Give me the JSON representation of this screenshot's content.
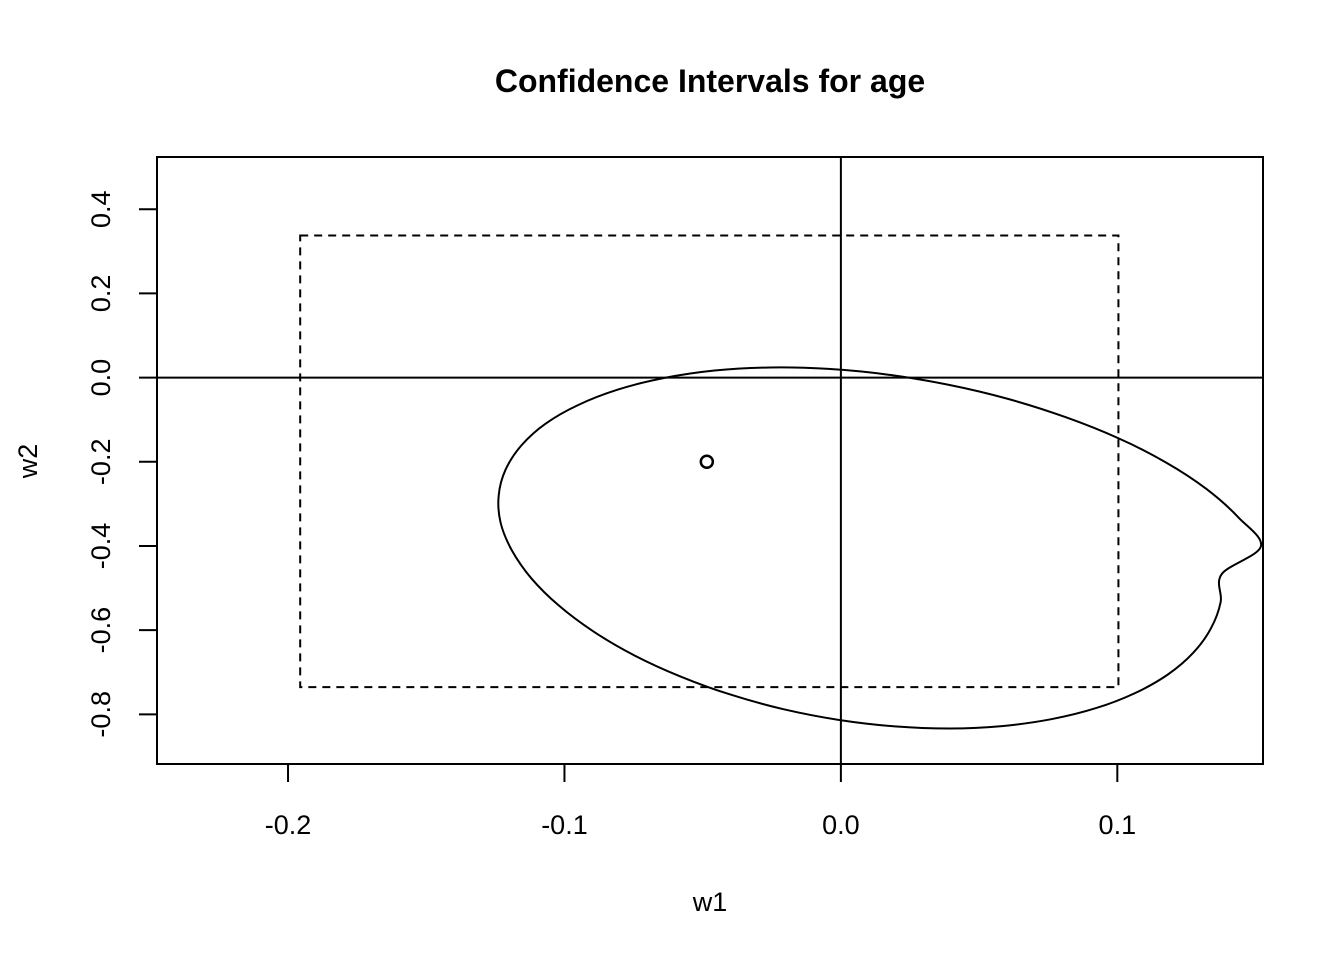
{
  "chart_data": {
    "type": "scatter",
    "title": "Confidence Intervals for age",
    "xlabel": "w1",
    "ylabel": "w2",
    "xlim": [
      -0.2474,
      0.1527
    ],
    "ylim": [
      -0.918,
      0.524
    ],
    "x_ticks": [
      -0.2,
      -0.1,
      0.0,
      0.1
    ],
    "x_tick_labels": [
      "-0.2",
      "-0.1",
      "0.0",
      "0.1"
    ],
    "y_ticks": [
      -0.8,
      -0.6,
      -0.4,
      -0.2,
      0.0,
      0.2,
      0.4
    ],
    "y_tick_labels": [
      "-0.8",
      "-0.6",
      "-0.4",
      "-0.2",
      "0.0",
      "0.2",
      "0.4"
    ],
    "reference_lines": {
      "x": 0.0,
      "y": 0.0
    },
    "point_estimate": {
      "x": -0.0485,
      "y": -0.2
    },
    "confidence_box": {
      "x": [
        -0.1956,
        0.1004
      ],
      "y": [
        -0.7355,
        0.3375
      ]
    },
    "confidence_ellipse": {
      "points": [
        [
          0.1378,
          -0.4667
        ],
        [
          0.1374,
          -0.5327
        ],
        [
          0.1339,
          -0.5954
        ],
        [
          0.1275,
          -0.6535
        ],
        [
          0.1183,
          -0.7053
        ],
        [
          0.1064,
          -0.7496
        ],
        [
          0.0923,
          -0.7853
        ],
        [
          0.0761,
          -0.8116
        ],
        [
          0.0583,
          -0.8279
        ],
        [
          0.0393,
          -0.8336
        ],
        [
          0.0195,
          -0.8287
        ],
        [
          -0.0006,
          -0.8134
        ],
        [
          -0.0206,
          -0.788
        ],
        [
          -0.0399,
          -0.7532
        ],
        [
          -0.0581,
          -0.71
        ],
        [
          -0.0749,
          -0.6594
        ],
        [
          -0.0896,
          -0.6027
        ],
        [
          -0.1021,
          -0.5413
        ],
        [
          -0.112,
          -0.4768
        ],
        [
          -0.119,
          -0.4107
        ],
        [
          -0.1231,
          -0.3447
        ],
        [
          -0.1238,
          -0.2802
        ],
        [
          -0.1213,
          -0.2186
        ],
        [
          -0.1156,
          -0.1614
        ],
        [
          -0.1069,
          -0.1098
        ],
        [
          -0.0951,
          -0.0653
        ],
        [
          -0.0808,
          -0.0288
        ],
        [
          -0.0642,
          -0.0012
        ],
        [
          -0.0457,
          0.0167
        ],
        [
          -0.0256,
          0.024
        ],
        [
          -0.0045,
          0.0207
        ],
        [
          0.0172,
          0.0068
        ],
        [
          0.0391,
          -0.0173
        ],
        [
          0.0606,
          -0.051
        ],
        [
          0.0812,
          -0.0938
        ],
        [
          0.1005,
          -0.1444
        ],
        [
          0.1177,
          -0.2019
        ],
        [
          0.1323,
          -0.265
        ],
        [
          0.1438,
          -0.3322
        ],
        [
          0.1519,
          -0.4016
        ]
      ]
    }
  }
}
